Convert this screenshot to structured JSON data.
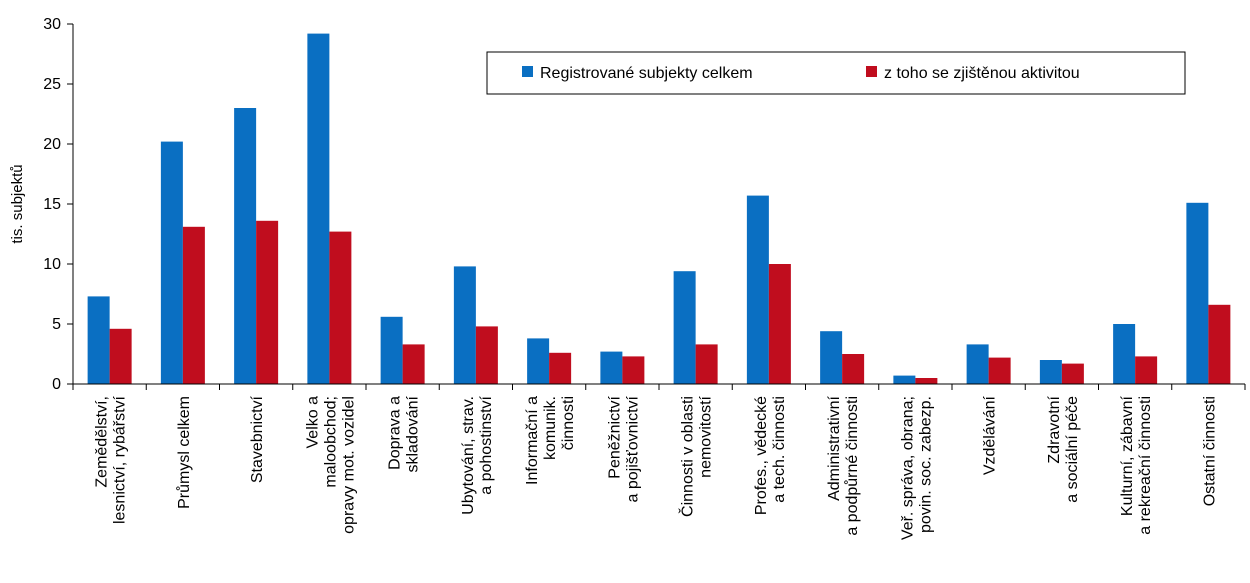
{
  "chart_data": {
    "type": "bar",
    "ylabel": "tis. subjektů",
    "ylim": [
      0,
      30
    ],
    "yticks": [
      0,
      5,
      10,
      15,
      20,
      25,
      30
    ],
    "grid": false,
    "legend_position": "top-right",
    "categories": [
      [
        "Zemědělství,",
        "lesnictví, rybářství"
      ],
      [
        "Průmysl celkem"
      ],
      [
        "Stavebnictví"
      ],
      [
        "Velko a",
        "maloobchod;",
        "opravy mot. vozidel"
      ],
      [
        "Doprava a",
        "skladování"
      ],
      [
        "Ubytování, strav.",
        "a pohostinství"
      ],
      [
        "Informační a",
        "komunik.",
        "činnosti"
      ],
      [
        "Peněžnictví",
        "a pojišťovnictví"
      ],
      [
        "Činnosti v oblasti",
        "nemovitostí"
      ],
      [
        "Profes., vědecké",
        "a tech. činnosti"
      ],
      [
        "Administrativní",
        "a podpůrné činnosti"
      ],
      [
        "Veř. správa, obrana;",
        "povin. soc. zabezp."
      ],
      [
        "Vzdělávání"
      ],
      [
        "Zdravotní",
        "a sociální péče"
      ],
      [
        "Kulturní, zábavní",
        "a rekreační činnosti"
      ],
      [
        "Ostatní činnosti"
      ]
    ],
    "series": [
      {
        "name": "Registrované subjekty celkem",
        "color": "#0a6fc2",
        "values": [
          7.3,
          20.2,
          23.0,
          29.2,
          5.6,
          9.8,
          3.8,
          2.7,
          9.4,
          15.7,
          4.4,
          0.7,
          3.3,
          2.0,
          5.0,
          15.1
        ]
      },
      {
        "name": "z toho se zjištěnou aktivitou",
        "color": "#c00d1e",
        "values": [
          4.6,
          13.1,
          13.6,
          12.7,
          3.3,
          4.8,
          2.6,
          2.3,
          3.3,
          10.0,
          2.5,
          0.5,
          2.2,
          1.7,
          2.3,
          6.6
        ]
      }
    ]
  }
}
